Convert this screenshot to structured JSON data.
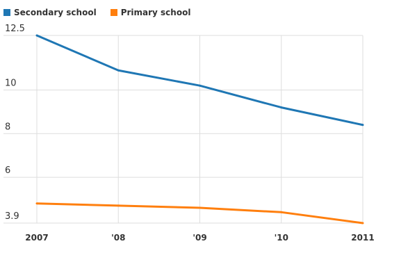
{
  "chart_data": {
    "type": "line",
    "categories": [
      "2007",
      "'08",
      "'09",
      "'10",
      "2011"
    ],
    "series": [
      {
        "name": "Secondary school",
        "color": "#1f77b4",
        "values": [
          12.5,
          10.9,
          10.2,
          9.2,
          8.4
        ]
      },
      {
        "name": "Primary school",
        "color": "#ff7f0e",
        "values": [
          4.8,
          4.7,
          4.6,
          4.4,
          3.9
        ]
      }
    ],
    "yticks": [
      "12.5",
      "10",
      "8",
      "6",
      "3.9"
    ],
    "ylim": [
      3.9,
      12.5
    ],
    "grid": true,
    "legend": "top-left"
  }
}
